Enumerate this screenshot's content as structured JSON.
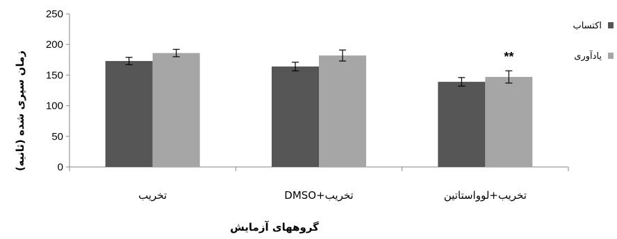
{
  "chart_data": {
    "type": "bar",
    "categories": [
      "تخریب",
      "تخریب+DMSO",
      "تخریب+لوواستاتین"
    ],
    "series": [
      {
        "name": "اکتساب",
        "values": [
          173,
          164,
          139
        ],
        "errors": [
          6,
          7,
          7
        ],
        "color": "#555555"
      },
      {
        "name": "یادآوری",
        "values": [
          186,
          182,
          147
        ],
        "errors": [
          6,
          9,
          10
        ],
        "color": "#a6a6a6"
      }
    ],
    "annotations": [
      {
        "category": 2,
        "series": 1,
        "text": "**"
      }
    ],
    "xlabel": "گروههای آزمایش",
    "ylabel": "زمان سپری شده (ثانیه)",
    "ylim": [
      0,
      250
    ],
    "yticks": [
      0,
      50,
      100,
      150,
      200,
      250
    ],
    "grid": false,
    "legend_position": "right"
  }
}
